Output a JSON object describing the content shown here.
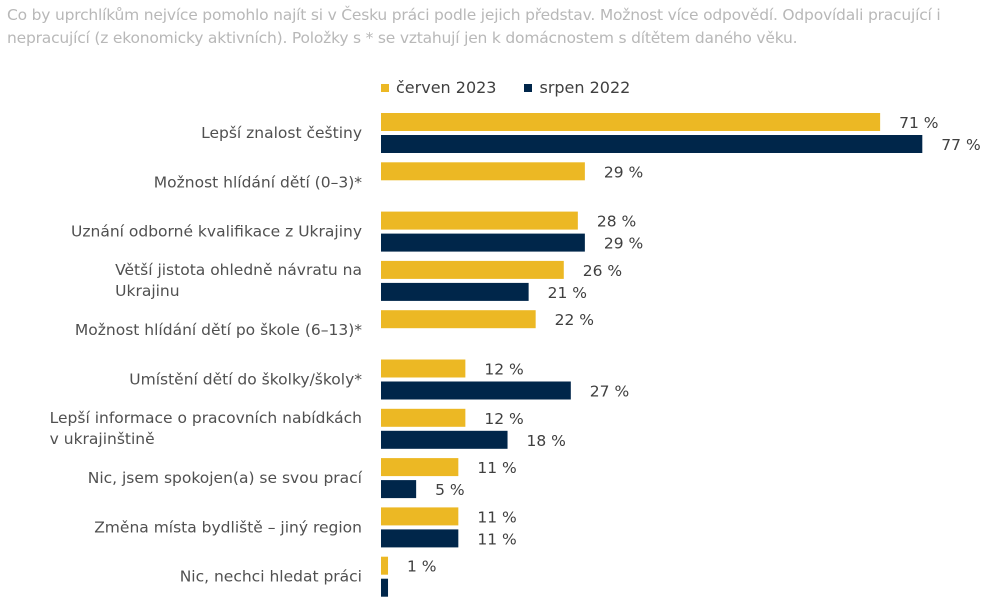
{
  "subtitle": "Co by uprchlíkům nejvíce pomohlo najít si v Česku práci podle jejich představ. Možnost více odpovědí. Odpovídali pracující i nepracující (z ekonomicky aktivních). Položky s * se vztahují jen k domácnostem s dítětem daného věku.",
  "colors": {
    "cerven_2023": "#ECB824",
    "srpen_2022": "#00264A"
  },
  "chart_data": {
    "type": "bar",
    "orientation": "horizontal",
    "title": "",
    "xlabel": "",
    "ylabel": "",
    "xlim": [
      0,
      77
    ],
    "grid": false,
    "legend_position": "top",
    "categories": [
      [
        "Lepší znalost češtiny"
      ],
      [
        "Možnost hlídání dětí (0–3)*"
      ],
      [
        "Uznání odborné kvalifikace z Ukrajiny"
      ],
      [
        "Větší jistota ohledně návratu na",
        "Ukrajinu"
      ],
      [
        "Možnost hlídání dětí po škole (6–13)*"
      ],
      [
        "Umístění dětí do školky/školy*"
      ],
      [
        "Lepší informace o pracovních nabídkách",
        "v ukrajinštině"
      ],
      [
        "Nic, jsem spokojen(a) se svou prací"
      ],
      [
        "Změna místa bydliště – jiný region"
      ],
      [
        "Nic, nechci hledat práci"
      ]
    ],
    "series": [
      {
        "name": "červen 2023",
        "color": "#ECB824",
        "values": [
          71,
          29,
          28,
          26,
          22,
          12,
          12,
          11,
          11,
          1
        ],
        "labels": [
          "71 %",
          "29 %",
          "28 %",
          "26 %",
          "22 %",
          "12 %",
          "12 %",
          "11 %",
          "11 %",
          "1 %"
        ]
      },
      {
        "name": "srpen 2022",
        "color": "#00264A",
        "values": [
          77,
          null,
          29,
          21,
          null,
          27,
          18,
          5,
          11,
          1
        ],
        "labels": [
          "77 %",
          null,
          "29 %",
          "21 %",
          null,
          "27 %",
          "18 %",
          "5 %",
          "11 %",
          null
        ]
      }
    ]
  }
}
